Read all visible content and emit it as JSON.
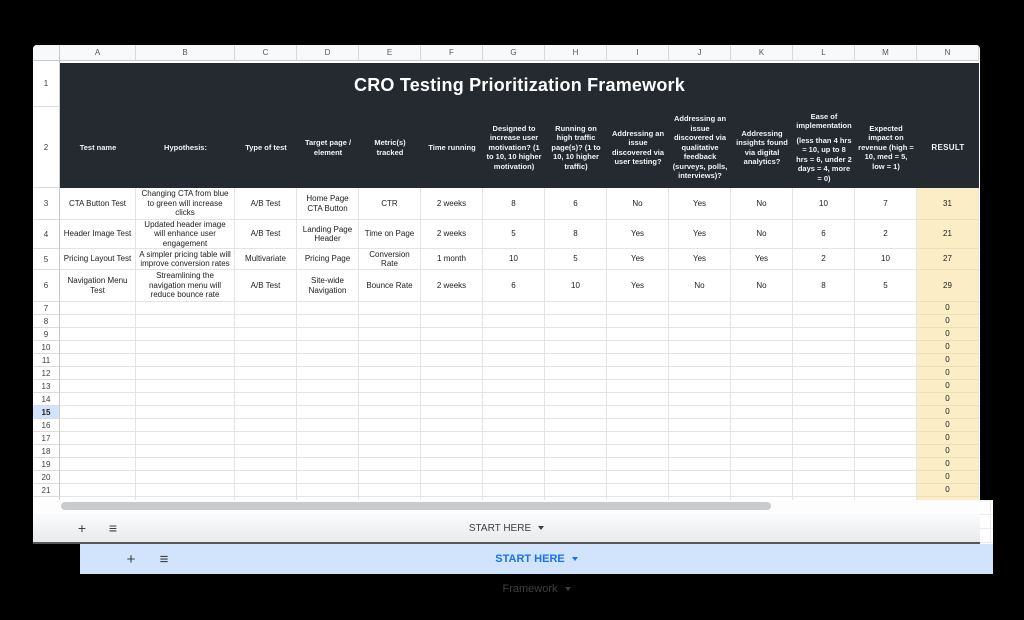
{
  "sheet": {
    "title": "CRO Testing Prioritization Framework",
    "column_letters": [
      "A",
      "B",
      "C",
      "D",
      "E",
      "F",
      "G",
      "H",
      "I",
      "J",
      "K",
      "L",
      "M",
      "N"
    ],
    "row_numbers": [
      "1",
      "2",
      "3",
      "4",
      "5",
      "6",
      "7",
      "8",
      "9",
      "10",
      "11",
      "12",
      "13",
      "14",
      "15",
      "16",
      "17",
      "18",
      "19",
      "20",
      "21"
    ],
    "selected_row": "15",
    "headers": [
      {
        "label": "Test name",
        "sub": ""
      },
      {
        "label": "Hypothesis:",
        "sub": ""
      },
      {
        "label": "Type of test",
        "sub": ""
      },
      {
        "label": "Target page / element",
        "sub": ""
      },
      {
        "label": "Metric(s) tracked",
        "sub": ""
      },
      {
        "label": "Time running",
        "sub": ""
      },
      {
        "label": "Designed to increase user motivation? (1 to 10, 10 higher motivation)",
        "sub": ""
      },
      {
        "label": "Running on high traffic page(s)? (1 to 10, 10 higher traffic)",
        "sub": ""
      },
      {
        "label": "Addressing an issue discovered via user testing?",
        "sub": ""
      },
      {
        "label": "Addressing an issue discovered via qualitative feedback (surveys, polls, interviews)?",
        "sub": ""
      },
      {
        "label": "Addressing insights found via digital analytics?",
        "sub": ""
      },
      {
        "label": "Ease of implementation",
        "sub": "(less than 4 hrs = 10, up to 8 hrs = 6, under 2 days = 4, more = 0)"
      },
      {
        "label": "Expected impact on revenue (high = 10, med = 5, low = 1)",
        "sub": ""
      },
      {
        "label": "RESULT",
        "sub": ""
      }
    ],
    "data_rows": [
      [
        "CTA Button Test",
        "Changing CTA from blue to green will increase clicks",
        "A/B Test",
        "Home Page CTA Button",
        "CTR",
        "2 weeks",
        "8",
        "6",
        "No",
        "Yes",
        "No",
        "10",
        "7",
        "31"
      ],
      [
        "Header Image Test",
        "Updated header image will enhance user engagement",
        "A/B Test",
        "Landing Page Header",
        "Time on Page",
        "2 weeks",
        "5",
        "8",
        "Yes",
        "Yes",
        "No",
        "6",
        "2",
        "21"
      ],
      [
        "Pricing Layout Test",
        "A simpler pricing table will improve conversion rates",
        "Multivariate",
        "Pricing Page",
        "Conversion Rate",
        "1 month",
        "10",
        "5",
        "Yes",
        "Yes",
        "Yes",
        "2",
        "10",
        "27"
      ],
      [
        "Navigation Menu Test",
        "Streamlining the navigation menu will reduce bounce rate",
        "A/B Test",
        "Site-wide Navigation",
        "Bounce Rate",
        "2 weeks",
        "6",
        "10",
        "Yes",
        "No",
        "No",
        "8",
        "5",
        "29"
      ]
    ],
    "empty_result_value": "0"
  },
  "front_tabbar": {
    "tabs": [
      {
        "label": "START HERE",
        "active": false
      },
      {
        "label": "Framework",
        "active": true
      }
    ]
  },
  "back_tabbar": {
    "tabs": [
      {
        "label": "START HERE",
        "active": true
      },
      {
        "label": "Framework",
        "active": false
      }
    ]
  },
  "icons": {
    "add_sheet": "+",
    "all_sheets": "≡"
  },
  "colors": {
    "header_dark": "#252a31",
    "accent_blue": "#1a73e8",
    "tab_highlight": "#d2e3fc",
    "result_fill": "#fbedc6",
    "selected_row_fill": "#d3e3fd"
  }
}
